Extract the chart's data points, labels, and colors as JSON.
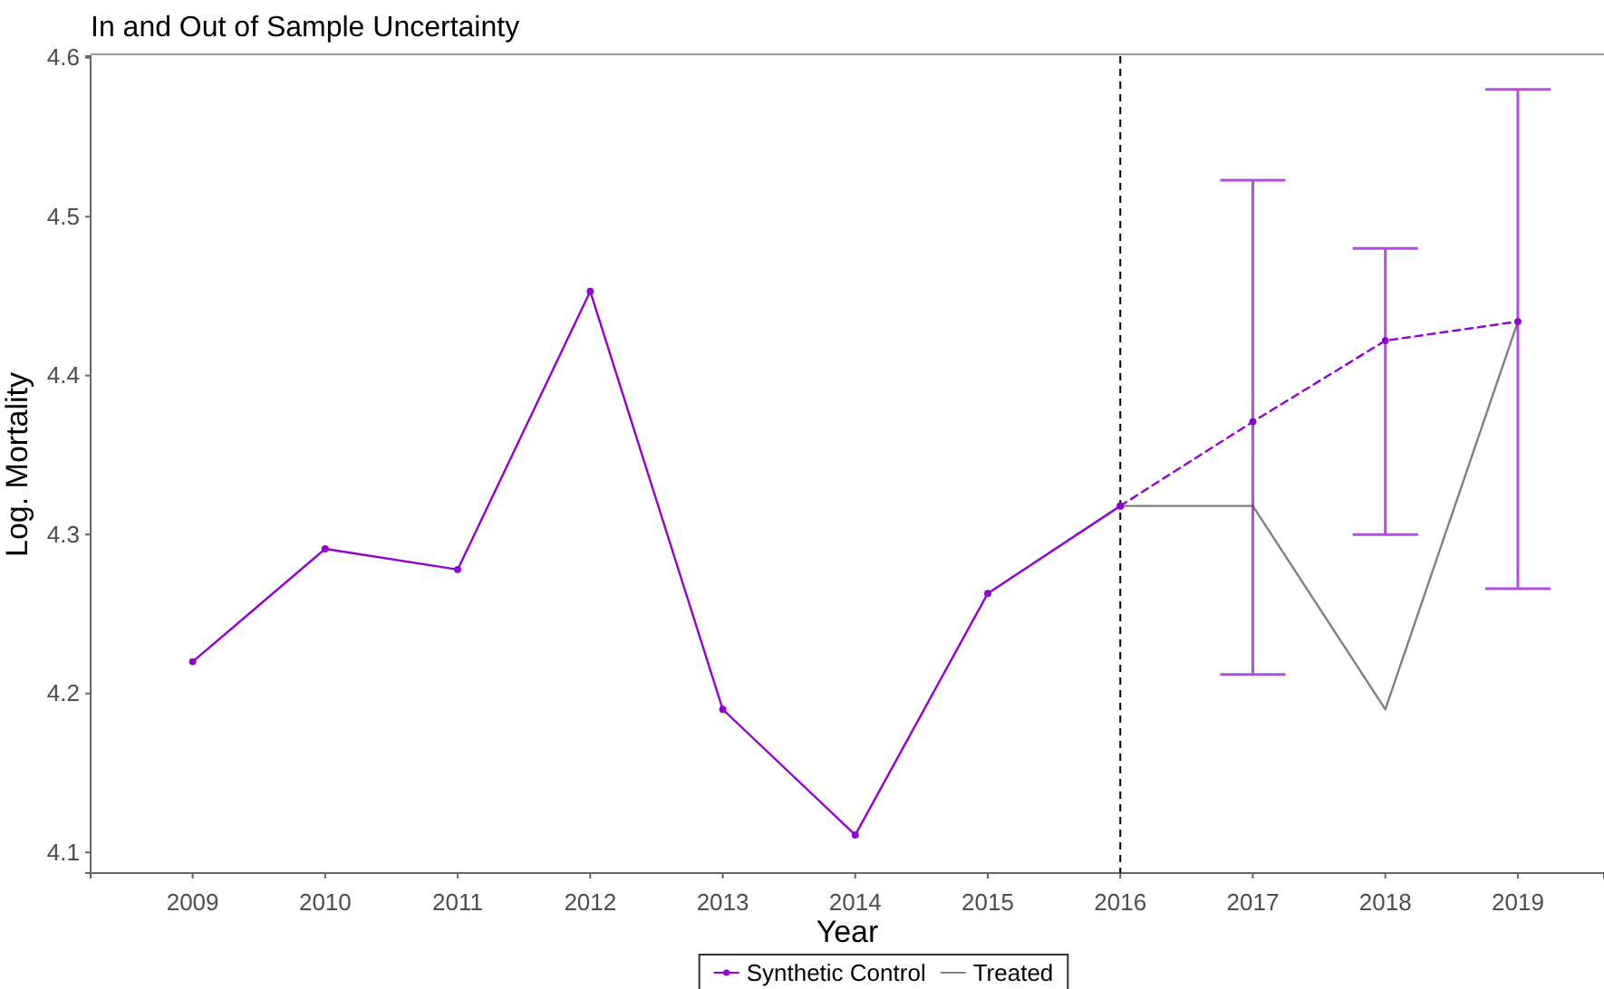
{
  "chart_data": {
    "type": "line",
    "title": "In and Out of Sample Uncertainty",
    "xlabel": "Year",
    "ylabel": "Log. Mortality",
    "xlim": [
      2008.23,
      2019.65
    ],
    "xticks": [
      2009,
      2010,
      2011,
      2012,
      2013,
      2014,
      2015,
      2016,
      2017,
      2018,
      2019
    ],
    "ylim": [
      4.087,
      4.601
    ],
    "yticks": [
      4.1,
      4.2,
      4.3,
      4.4,
      4.5,
      4.6
    ],
    "series": [
      {
        "name": "Treated",
        "color": "#808080",
        "marker": "none",
        "line_style": "solid",
        "x": [
          2016,
          2017,
          2018,
          2019
        ],
        "values": [
          4.318,
          4.318,
          4.19,
          4.434
        ]
      },
      {
        "name": "Synthetic Control",
        "color": "#9400d3",
        "marker": "circle",
        "line_style": "solid",
        "x": [
          2009,
          2010,
          2011,
          2012,
          2013,
          2014,
          2015,
          2016
        ],
        "values": [
          4.22,
          4.291,
          4.278,
          4.453,
          4.19,
          4.111,
          4.263,
          4.318
        ]
      },
      {
        "color": "#9400d3",
        "marker": "circle",
        "line_style": "dashed",
        "x": [
          2016,
          2017,
          2018,
          2019
        ],
        "values": [
          4.318,
          4.371,
          4.422,
          4.434
        ],
        "errors": [
          null,
          [
            4.212,
            4.523
          ],
          [
            4.3,
            4.48
          ],
          [
            4.266,
            4.58
          ]
        ]
      }
    ],
    "ref_lines": [
      {
        "axis": "x",
        "value": 2016,
        "color": "#000000",
        "line_style": "dashed"
      }
    ],
    "grid": false,
    "legend": "bottom"
  }
}
